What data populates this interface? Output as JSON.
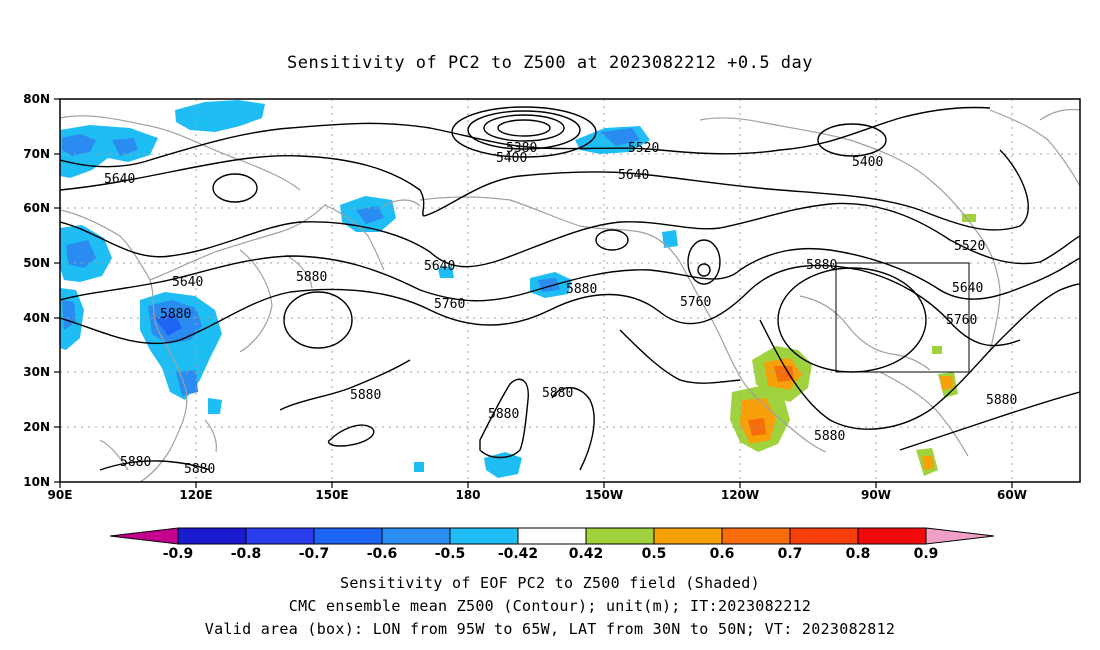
{
  "title": "Sensitivity of PC2 to Z500 at 2023082212 +0.5 day",
  "map": {
    "lon_ticks": [
      "90E",
      "120E",
      "150E",
      "180",
      "150W",
      "120W",
      "90W",
      "60W"
    ],
    "lat_ticks": [
      "80N",
      "70N",
      "60N",
      "50N",
      "40N",
      "30N",
      "20N",
      "10N"
    ],
    "grid": "dotted",
    "contour_labels": [
      "5380",
      "5400",
      "5520",
      "5640",
      "5400",
      "5640",
      "5640",
      "5880",
      "5640",
      "5880",
      "5760",
      "5880",
      "5760",
      "5880",
      "5520",
      "5640",
      "5760",
      "5880",
      "5880",
      "5880",
      "5880",
      "5880",
      "5880",
      "5880"
    ],
    "valid_box": {
      "lon_from": -95,
      "lon_to": -65,
      "lat_from": 30,
      "lat_to": 50
    },
    "colors": {
      "coast": "#a0a0a0",
      "contour": "#000000",
      "grid": "#a0a0a0"
    }
  },
  "colorbar": {
    "labels": [
      "-0.9",
      "-0.8",
      "-0.7",
      "-0.6",
      "-0.5",
      "-0.42",
      "0.42",
      "0.5",
      "0.6",
      "0.7",
      "0.8",
      "0.9"
    ],
    "colors": [
      "#c4008c",
      "#1a1ad0",
      "#2a3ef0",
      "#1e64f5",
      "#2a8cf0",
      "#1ebef5",
      "#ffffff",
      "#9fd23c",
      "#f7a00a",
      "#f56e0a",
      "#f5400a",
      "#f00a0a",
      "#f0a0c8"
    ]
  },
  "footer": {
    "line1": "Sensitivity of EOF PC2 to Z500 field (Shaded)",
    "line2": "CMC ensemble mean Z500 (Contour); unit(m); IT:2023082212",
    "line3": "Valid area (box): LON from 95W to 65W, LAT from 30N to 50N; VT: 2023082812"
  }
}
